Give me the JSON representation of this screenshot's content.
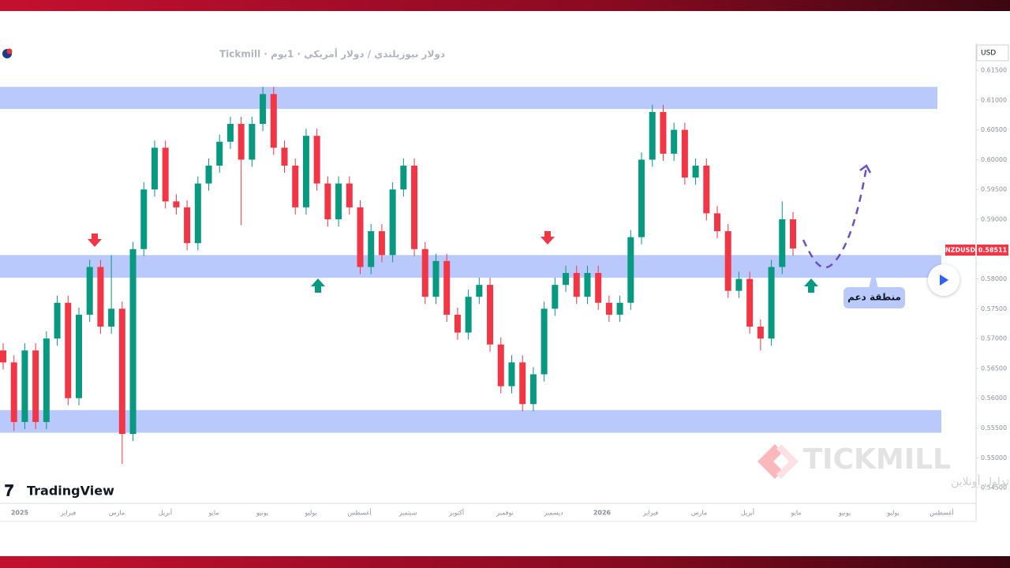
{
  "chart_data": {
    "type": "candlestick",
    "header": "دولار نيوزيلندي / دولار أمريكي · 1يوم · Tickmill",
    "currency": "USD",
    "symbol": "NZDUSD",
    "price_label": "0.58511",
    "annotation": "منطقة دعم",
    "brand": "TradingView",
    "watermark": "TICKMILL",
    "watermark_sub": "تداول أونلاين",
    "up_color": "#089981",
    "down_color": "#f23645",
    "zone_color": "#b9c9fb",
    "ylim": [
      0.5421,
      0.6195
    ],
    "yticks": [
      {
        "value": 0.615,
        "label": "0.61500"
      },
      {
        "value": 0.61,
        "label": "0.61000"
      },
      {
        "value": 0.605,
        "label": "0.60500"
      },
      {
        "value": 0.6,
        "label": "0.60000"
      },
      {
        "value": 0.595,
        "label": "0.59500"
      },
      {
        "value": 0.59,
        "label": "0.59000"
      },
      {
        "value": 0.585,
        "label": "0.58500"
      },
      {
        "value": 0.58,
        "label": "0.58000"
      },
      {
        "value": 0.575,
        "label": "0.57500"
      },
      {
        "value": 0.57,
        "label": "0.57000"
      },
      {
        "value": 0.565,
        "label": "0.56500"
      },
      {
        "value": 0.56,
        "label": "0.56000"
      },
      {
        "value": 0.555,
        "label": "0.55500"
      },
      {
        "value": 0.55,
        "label": "0.55000"
      },
      {
        "value": 0.545,
        "label": "0.54500"
      }
    ],
    "x_labels": [
      "2025",
      "فبراير",
      "مارس",
      "أبريل",
      "مايو",
      "يونيو",
      "يوليو",
      "أغسطس",
      "سبتمبر",
      "أكتوبر",
      "نوفمبر",
      "ديسمبر",
      "2026",
      "فبراير",
      "مارس",
      "أبريل",
      "مايو",
      "يونيو",
      "يوليو",
      "أغسطس"
    ],
    "zones": [
      {
        "from": 0.6085,
        "to": 0.6122
      },
      {
        "from": 0.5802,
        "to": 0.584
      },
      {
        "from": 0.5542,
        "to": 0.558
      }
    ],
    "open": [
      0.568,
      0.566,
      0.556,
      0.568,
      0.556,
      0.57,
      0.576,
      0.56,
      0.574,
      0.582,
      0.572,
      0.575,
      0.554,
      0.585,
      0.595,
      0.602,
      0.593,
      0.592,
      0.586,
      0.596,
      0.599,
      0.603,
      0.606,
      0.6,
      0.606,
      0.611,
      0.602,
      0.599,
      0.592,
      0.604,
      0.596,
      0.59,
      0.596,
      0.592,
      0.582,
      0.588,
      0.584,
      0.595,
      0.599,
      0.585,
      0.577,
      0.583,
      0.574,
      0.571,
      0.577,
      0.579,
      0.569,
      0.562,
      0.566,
      0.559,
      0.564,
      0.575,
      0.579,
      0.581,
      0.577,
      0.581,
      0.576,
      0.574,
      0.576,
      0.587,
      0.6,
      0.608,
      0.601,
      0.605,
      0.597,
      0.599,
      0.591,
      0.588,
      0.578,
      0.58,
      0.572,
      0.57,
      0.582,
      0.59
    ],
    "high": [
      0.5692,
      0.5672,
      0.5692,
      0.5692,
      0.5712,
      0.5772,
      0.5772,
      0.5752,
      0.5832,
      0.5832,
      0.584,
      0.5762,
      0.5862,
      0.5962,
      0.6032,
      0.6032,
      0.5942,
      0.5932,
      0.5972,
      0.6002,
      0.6042,
      0.6072,
      0.6072,
      0.6072,
      0.6122,
      0.6122,
      0.6032,
      0.6002,
      0.6052,
      0.6052,
      0.5972,
      0.5972,
      0.5972,
      0.5932,
      0.5892,
      0.5892,
      0.5962,
      0.6002,
      0.6002,
      0.5862,
      0.5842,
      0.5842,
      0.5752,
      0.5782,
      0.5802,
      0.5802,
      0.5702,
      0.5672,
      0.5672,
      0.5652,
      0.5762,
      0.5802,
      0.5822,
      0.5822,
      0.5822,
      0.5822,
      0.5772,
      0.5772,
      0.5882,
      0.6012,
      0.6092,
      0.6092,
      0.6062,
      0.6062,
      0.6002,
      0.6002,
      0.5922,
      0.5892,
      0.5812,
      0.5812,
      0.5732,
      0.5832,
      0.593,
      0.5912
    ],
    "low": [
      0.5648,
      0.5545,
      0.5548,
      0.5548,
      0.5548,
      0.5688,
      0.5588,
      0.5588,
      0.5728,
      0.5708,
      0.5708,
      0.549,
      0.5528,
      0.5838,
      0.5938,
      0.5918,
      0.5908,
      0.5848,
      0.5848,
      0.5948,
      0.5978,
      0.6018,
      0.589,
      0.5988,
      0.6048,
      0.6008,
      0.5978,
      0.5908,
      0.5908,
      0.5948,
      0.5888,
      0.5888,
      0.5908,
      0.5808,
      0.5808,
      0.5828,
      0.5828,
      0.5938,
      0.5838,
      0.5758,
      0.5758,
      0.5728,
      0.5698,
      0.5698,
      0.5758,
      0.5678,
      0.5608,
      0.5608,
      0.5578,
      0.5578,
      0.5628,
      0.5738,
      0.5778,
      0.5758,
      0.5758,
      0.5748,
      0.5728,
      0.5728,
      0.5748,
      0.5858,
      0.5988,
      0.5998,
      0.5998,
      0.5958,
      0.5958,
      0.5898,
      0.5868,
      0.5768,
      0.5768,
      0.5708,
      0.568,
      0.5688,
      0.5808,
      0.5839
    ],
    "close": [
      0.566,
      0.556,
      0.568,
      0.556,
      0.57,
      0.576,
      0.56,
      0.574,
      0.582,
      0.572,
      0.575,
      0.554,
      0.585,
      0.595,
      0.602,
      0.593,
      0.592,
      0.586,
      0.596,
      0.599,
      0.603,
      0.606,
      0.6,
      0.606,
      0.611,
      0.602,
      0.599,
      0.592,
      0.604,
      0.596,
      0.59,
      0.596,
      0.592,
      0.582,
      0.588,
      0.584,
      0.595,
      0.599,
      0.585,
      0.577,
      0.583,
      0.574,
      0.571,
      0.577,
      0.579,
      0.569,
      0.562,
      0.566,
      0.559,
      0.564,
      0.575,
      0.579,
      0.581,
      0.577,
      0.581,
      0.576,
      0.574,
      0.576,
      0.587,
      0.6,
      0.608,
      0.601,
      0.605,
      0.597,
      0.599,
      0.591,
      0.588,
      0.578,
      0.58,
      0.572,
      0.57,
      0.582,
      0.59,
      0.5851
    ]
  }
}
